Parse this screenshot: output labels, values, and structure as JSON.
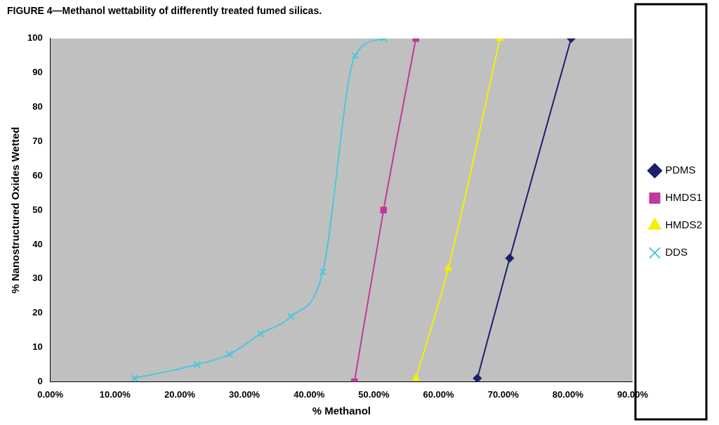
{
  "chart_data": {
    "type": "line",
    "title": "FIGURE 4—Methanol wettability of differently treated fumed silicas.",
    "x_label": "% Methanol",
    "y_label": "% Nanostructured Oxides Wetted",
    "xlim": [
      0,
      90
    ],
    "xticks": [
      {
        "value": 0,
        "label": "0.00%"
      },
      {
        "value": 10,
        "label": "10.00%"
      },
      {
        "value": 20,
        "label": "20.00%"
      },
      {
        "value": 30,
        "label": "30.00%"
      },
      {
        "value": 40,
        "label": "40.00%"
      },
      {
        "value": 50,
        "label": "50.00%"
      },
      {
        "value": 60,
        "label": "60.00%"
      },
      {
        "value": 70,
        "label": "70.00%"
      },
      {
        "value": 80,
        "label": "80.00%"
      },
      {
        "value": 90,
        "label": "90.00%"
      }
    ],
    "ylim": [
      0,
      100
    ],
    "yticks": [
      0,
      10,
      20,
      30,
      40,
      50,
      60,
      70,
      80,
      90,
      100
    ],
    "grid": false,
    "legend": "right",
    "series": [
      {
        "name": "PDMS",
        "color": "#1b1f6e",
        "marker": "diamond",
        "line_style": "solid",
        "x": [
          66,
          71,
          80.5
        ],
        "values": [
          1,
          36,
          100
        ]
      },
      {
        "name": "HMDS1",
        "color": "#c0399a",
        "marker": "square",
        "line_style": "solid",
        "x": [
          47,
          51.5,
          56.5
        ],
        "values": [
          0,
          50,
          100
        ]
      },
      {
        "name": "HMDS2",
        "color": "#f5f000",
        "marker": "triangle",
        "line_style": "solid",
        "x": [
          56.5,
          61.5,
          69.5
        ],
        "values": [
          1,
          33,
          100
        ]
      },
      {
        "name": "DDS",
        "color": "#4cc8dc",
        "marker": "cross",
        "line_style": "solid",
        "x": [
          13,
          22.7,
          27.7,
          32.5,
          37.2,
          42.1,
          47.1,
          51.6
        ],
        "values": [
          1,
          5,
          8,
          14,
          19,
          32,
          95,
          100
        ]
      }
    ]
  }
}
